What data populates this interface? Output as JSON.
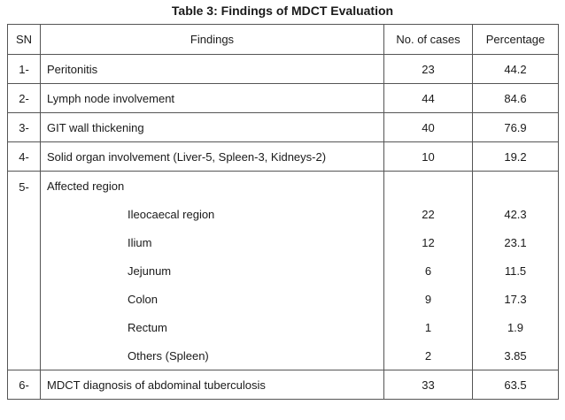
{
  "title": "Table 3: Findings of MDCT Evaluation",
  "headers": {
    "sn": "SN",
    "findings": "Findings",
    "cases": "No. of cases",
    "percentage": "Percentage"
  },
  "rows": [
    {
      "sn": "1-",
      "finding": "Peritonitis",
      "cases": "23",
      "pct": "44.2"
    },
    {
      "sn": "2-",
      "finding": "Lymph node involvement",
      "cases": "44",
      "pct": "84.6"
    },
    {
      "sn": "3-",
      "finding": "GIT wall thickening",
      "cases": "40",
      "pct": "76.9"
    },
    {
      "sn": "4-",
      "finding": "Solid organ involvement (Liver-5, Spleen-3, Kidneys-2)",
      "cases": "10",
      "pct": "19.2"
    }
  ],
  "group": {
    "sn": "5-",
    "finding": "Affected region",
    "items": [
      {
        "finding": "Ileocaecal region",
        "cases": "22",
        "pct": "42.3"
      },
      {
        "finding": "Ilium",
        "cases": "12",
        "pct": "23.1"
      },
      {
        "finding": "Jejunum",
        "cases": "6",
        "pct": "11.5"
      },
      {
        "finding": "Colon",
        "cases": "9",
        "pct": "17.3"
      },
      {
        "finding": "Rectum",
        "cases": "1",
        "pct": "1.9"
      },
      {
        "finding": "Others (Spleen)",
        "cases": "2",
        "pct": "3.85"
      }
    ]
  },
  "last_row": {
    "sn": "6-",
    "finding": "MDCT diagnosis of abdominal tuberculosis",
    "cases": "33",
    "pct": "63.5"
  }
}
